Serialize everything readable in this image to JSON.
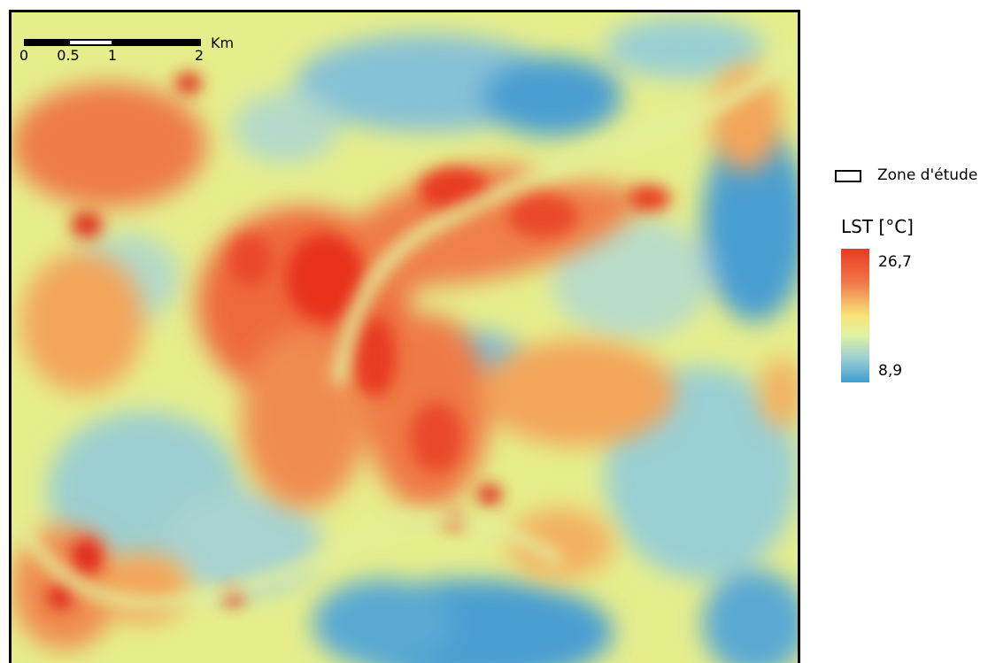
{
  "scalebar": {
    "ticks": [
      "0",
      "0.5",
      "1",
      "2"
    ],
    "unit": "Km"
  },
  "legend": {
    "zone_label": "Zone d'étude",
    "title": "LST [°C]",
    "max_label": "26,7",
    "min_label": "8,9",
    "ramp_colors": [
      "#e83a23",
      "#f0764a",
      "#f7e478",
      "#dff2a3",
      "#9bcfd3",
      "#3e9dd1"
    ]
  },
  "colors": {
    "hot": "#e8311f",
    "warm": "#ee6a3c",
    "mild": "#f5c067",
    "neutral": "#e6ee8c",
    "cool": "#a8d3d0",
    "cold": "#4a9fd2"
  }
}
